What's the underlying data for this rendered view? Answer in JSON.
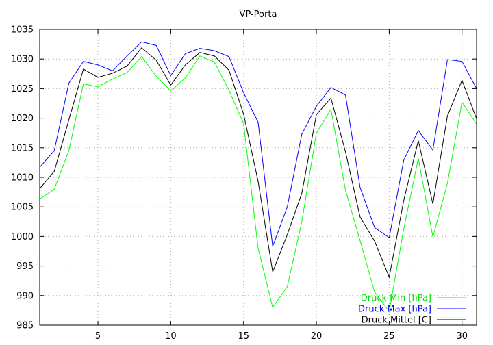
{
  "chart_data": {
    "type": "line",
    "title": "VP-Porta",
    "xlabel": "",
    "ylabel": "",
    "xlim": [
      1,
      31
    ],
    "ylim": [
      985,
      1035
    ],
    "xticks": [
      5,
      10,
      15,
      20,
      25,
      30
    ],
    "yticks": [
      985,
      990,
      995,
      1000,
      1005,
      1010,
      1015,
      1020,
      1025,
      1030,
      1035
    ],
    "grid": true,
    "legend_position": "bottom-right",
    "x": [
      1,
      2,
      3,
      4,
      5,
      6,
      7,
      8,
      9,
      10,
      11,
      12,
      13,
      14,
      15,
      16,
      17,
      18,
      19,
      20,
      21,
      22,
      23,
      24,
      25,
      26,
      27,
      28,
      29,
      30,
      31
    ],
    "series": [
      {
        "name": "Druck Min [hPa]",
        "color": "#00ff00",
        "values": [
          1006.3,
          1008,
          1014.5,
          1025.8,
          1025.3,
          1026.6,
          1027.7,
          1030.4,
          1027.1,
          1024.6,
          1026.8,
          1030.5,
          1029.5,
          1024.7,
          1019.1,
          998,
          988,
          991.5,
          1002.5,
          1017.5,
          1021.5,
          1007.8,
          999.3,
          990.6,
          987.3,
          1001.3,
          1013.2,
          999.9,
          1009,
          1022.7,
          1019
        ]
      },
      {
        "name": "Druck Max [hPa]",
        "color": "#0000ff",
        "values": [
          1011.7,
          1014.5,
          1025.9,
          1029.6,
          1029,
          1028,
          1030.5,
          1032.9,
          1032.3,
          1027.2,
          1030.9,
          1031.8,
          1031.4,
          1030.4,
          1024.3,
          1019.3,
          998.3,
          1005,
          1017.3,
          1022,
          1025.2,
          1023.9,
          1008.3,
          1001.5,
          999.8,
          1012.9,
          1017.9,
          1014.6,
          1029.9,
          1029.6,
          1025
        ]
      },
      {
        "name": "Druck Mittel [C]",
        "color": "#000000",
        "values": [
          1008.1,
          1011,
          1019.7,
          1028.3,
          1026.9,
          1027.6,
          1028.8,
          1031.9,
          1029.8,
          1025.6,
          1029,
          1031.1,
          1030.5,
          1028.1,
          1020.7,
          1009.3,
          994,
          1000.3,
          1007.3,
          1020.6,
          1023.4,
          1014.3,
          1003.3,
          999.2,
          993.1,
          1006.1,
          1016.2,
          1005.5,
          1020.4,
          1026.4,
          1019.9
        ]
      }
    ]
  }
}
